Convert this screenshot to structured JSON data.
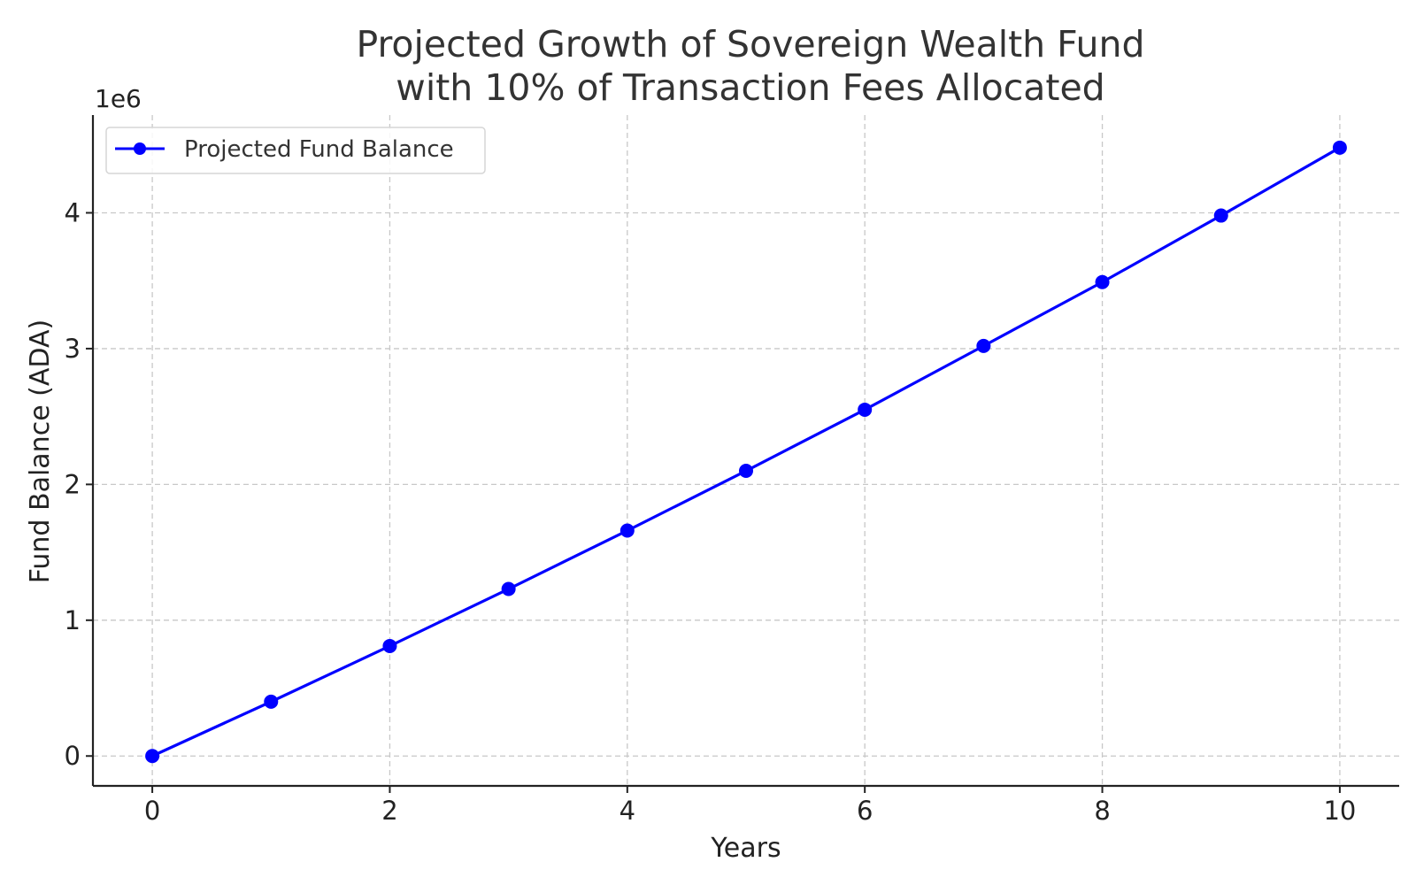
{
  "chart_data": {
    "type": "line",
    "title": [
      "Projected Growth of Sovereign Wealth Fund",
      "with 10% of Transaction Fees Allocated"
    ],
    "xlabel": "Years",
    "ylabel": "Fund Balance (ADA)",
    "y_offset_label": "1e6",
    "xlim": [
      -0.5,
      10.5
    ],
    "ylim": [
      -0.22,
      4.72
    ],
    "x_ticks": [
      0,
      2,
      4,
      6,
      8,
      10
    ],
    "y_ticks": [
      0,
      1,
      2,
      3,
      4
    ],
    "grid": true,
    "legend_position": "top-left",
    "series": [
      {
        "name": "Projected Fund Balance",
        "color": "#0000ff",
        "marker": "circle",
        "x": [
          0,
          1,
          2,
          3,
          4,
          5,
          6,
          7,
          8,
          9,
          10
        ],
        "y": [
          0.0,
          0.4,
          0.81,
          1.23,
          1.66,
          2.1,
          2.55,
          3.02,
          3.49,
          3.98,
          4.48
        ]
      }
    ]
  }
}
